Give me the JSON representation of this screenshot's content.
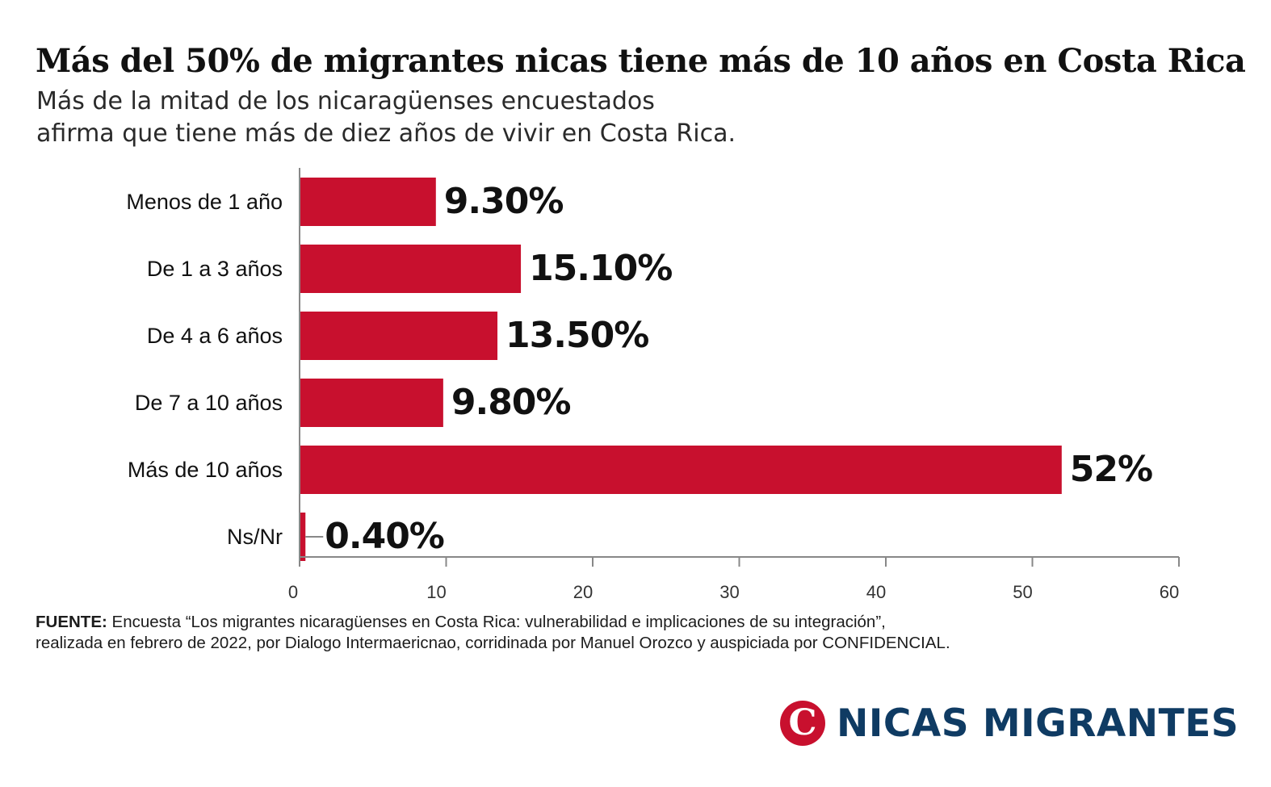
{
  "header": {
    "title": "Más del 50% de migrantes nicas  tiene más de 10 años en Costa Rica",
    "subtitle_lines": [
      "Más de la mitad de los nicaragüenses encuestados",
      "afirma que tiene más de diez años de vivir en Costa Rica."
    ]
  },
  "chart_data": {
    "type": "bar",
    "orientation": "horizontal",
    "categories": [
      "Menos de 1 año",
      "De 1 a 3 años",
      "De 4 a 6 años",
      "De 7 a 10 años",
      "Más de 10 años",
      "Ns/Nr"
    ],
    "values": [
      9.3,
      15.1,
      13.5,
      9.8,
      52,
      0.4
    ],
    "data_labels": [
      "9.30%",
      "15.10%",
      "13.50%",
      "9.80%",
      "52%",
      "0.40%"
    ],
    "xlim": [
      0,
      60
    ],
    "xticks": [
      0,
      10,
      20,
      30,
      40,
      50,
      60
    ],
    "xlabel": "",
    "ylabel": "",
    "grid": false,
    "bar_color": "#c8102e"
  },
  "source": {
    "label": "FUENTE:",
    "line1": " Encuesta “Los migrantes nicaragüenses en Costa Rica: vulnerabilidad e implicaciones de su integración”,",
    "line2": "realizada en febrero de 2022, por Dialogo Intermaericnao, corridinada por Manuel Orozco y auspiciada por CONFIDENCIAL."
  },
  "brand": {
    "logo_letter": "C",
    "name": "NICAS MIGRANTES",
    "logo_color": "#c8102e",
    "name_color": "#0f3b63"
  }
}
